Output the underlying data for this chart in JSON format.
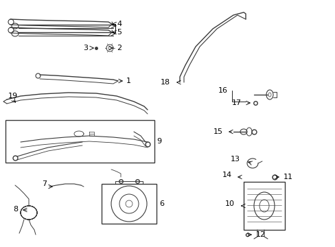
{
  "bg_color": "#ffffff",
  "line_color": "#3a3a3a",
  "text_color": "#000000",
  "fig_width": 4.89,
  "fig_height": 3.6,
  "dpi": 100,
  "xlim": [
    0,
    489
  ],
  "ylim": [
    0,
    360
  ]
}
